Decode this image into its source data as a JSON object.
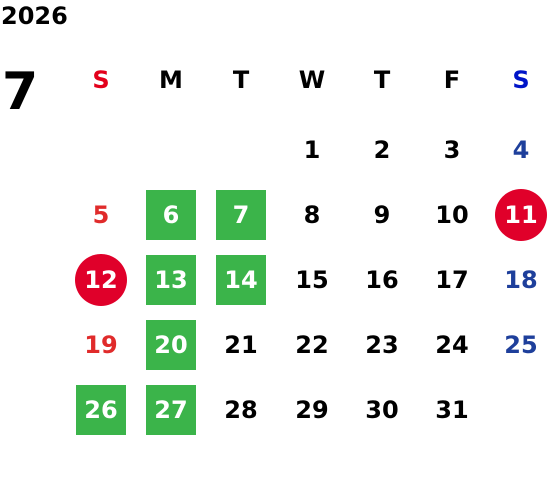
{
  "calendar": {
    "year": "2026",
    "month": "7",
    "weekdays": [
      {
        "label": "S",
        "color": "#e3001b"
      },
      {
        "label": "M",
        "color": "#000000"
      },
      {
        "label": "T",
        "color": "#000000"
      },
      {
        "label": "W",
        "color": "#000000"
      },
      {
        "label": "T",
        "color": "#000000"
      },
      {
        "label": "F",
        "color": "#000000"
      },
      {
        "label": "S",
        "color": "#0014c8"
      }
    ],
    "weeks": [
      [
        null,
        null,
        null,
        {
          "day": "1",
          "style": "normal"
        },
        {
          "day": "2",
          "style": "normal"
        },
        {
          "day": "3",
          "style": "normal"
        },
        {
          "day": "4",
          "style": "saturday"
        }
      ],
      [
        {
          "day": "5",
          "style": "sunday"
        },
        {
          "day": "6",
          "style": "green"
        },
        {
          "day": "7",
          "style": "green"
        },
        {
          "day": "8",
          "style": "normal"
        },
        {
          "day": "9",
          "style": "normal"
        },
        {
          "day": "10",
          "style": "normal"
        },
        {
          "day": "11",
          "style": "red-circle"
        }
      ],
      [
        {
          "day": "12",
          "style": "red-circle"
        },
        {
          "day": "13",
          "style": "green"
        },
        {
          "day": "14",
          "style": "green"
        },
        {
          "day": "15",
          "style": "normal"
        },
        {
          "day": "16",
          "style": "normal"
        },
        {
          "day": "17",
          "style": "normal"
        },
        {
          "day": "18",
          "style": "saturday"
        }
      ],
      [
        {
          "day": "19",
          "style": "sunday"
        },
        {
          "day": "20",
          "style": "green"
        },
        {
          "day": "21",
          "style": "normal"
        },
        {
          "day": "22",
          "style": "normal"
        },
        {
          "day": "23",
          "style": "normal"
        },
        {
          "day": "24",
          "style": "normal"
        },
        {
          "day": "25",
          "style": "saturday"
        }
      ],
      [
        {
          "day": "26",
          "style": "green"
        },
        {
          "day": "27",
          "style": "green"
        },
        {
          "day": "28",
          "style": "normal"
        },
        {
          "day": "29",
          "style": "normal"
        },
        {
          "day": "30",
          "style": "normal"
        },
        {
          "day": "31",
          "style": "normal"
        },
        null
      ]
    ],
    "colors": {
      "sunday": "#e02b2b",
      "saturday": "#1e3f9b",
      "normal": "#000000",
      "green": "#3bb44a",
      "red_circle": "#e0002a"
    }
  }
}
